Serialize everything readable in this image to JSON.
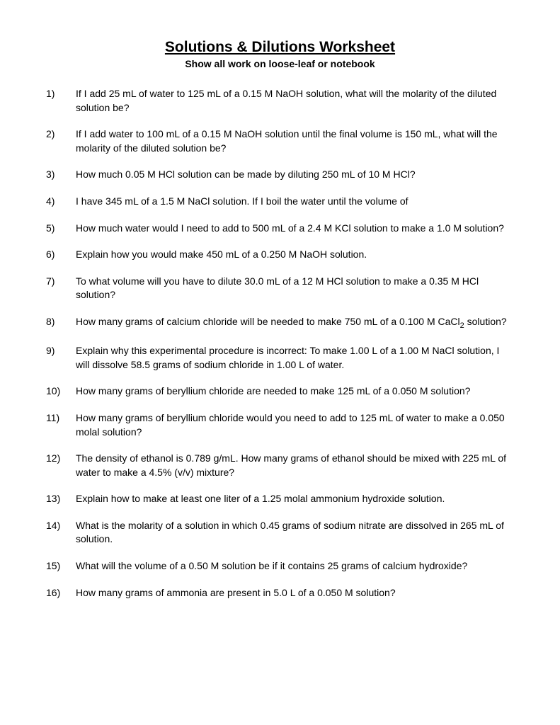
{
  "title": "Solutions & Dilutions Worksheet",
  "subtitle": "Show all work on loose-leaf or notebook",
  "questions": [
    {
      "num": "1)",
      "text": "If I add 25 mL of water to 125 mL of a 0.15 M NaOH solution, what will the molarity of the diluted solution be?"
    },
    {
      "num": "2)",
      "text": "If I add water to 100 mL of a 0.15 M NaOH solution until the final volume is 150 mL, what will the molarity of the diluted solution be?"
    },
    {
      "num": "3)",
      "text": "How much 0.05 M HCl solution can be made by diluting 250 mL of 10 M HCl?"
    },
    {
      "num": "4)",
      "text": "I have 345 mL of a 1.5 M NaCl solution.  If I boil the water until the volume of"
    },
    {
      "num": "5)",
      "text": "How much water would I need to add to 500 mL of a 2.4 M KCl solution to make a 1.0 M solution?"
    },
    {
      "num": "6)",
      "text": "Explain how you would make 450 mL of a 0.250 M NaOH solution."
    },
    {
      "num": "7)",
      "text": "To what volume will you have to dilute 30.0 mL of a 12 M HCl solution to make a 0.35 M HCl solution?"
    },
    {
      "num": "8)",
      "text": "How many grams of calcium chloride will be needed to make 750 mL of a 0.100 M CaCl",
      "sub": "2",
      "text2": " solution?"
    },
    {
      "num": "9)",
      "text": "Explain why this experimental procedure is incorrect:  To make 1.00 L of a 1.00 M NaCl solution, I will dissolve 58.5 grams of sodium chloride in 1.00 L of water."
    },
    {
      "num": "10)",
      "text": "How many grams of beryllium chloride are needed to make 125 mL of a 0.050 M solution?"
    },
    {
      "num": "11)",
      "text": "How many grams of beryllium chloride would you need to add to 125 mL of water to make a 0.050 molal solution?"
    },
    {
      "num": "12)",
      "text": "The density of ethanol is 0.789 g/mL.  How many grams of ethanol should be mixed with 225 mL of water to make a 4.5% (v/v) mixture?"
    },
    {
      "num": "13)",
      "text": "Explain how to make at least one liter of a 1.25 molal ammonium hydroxide solution."
    },
    {
      "num": "14)",
      "text": "What is the molarity of a solution in which 0.45 grams of sodium nitrate are dissolved in 265 mL of solution."
    },
    {
      "num": "15)",
      "text": "What will the volume of a 0.50 M solution be if it contains 25 grams of calcium hydroxide?"
    },
    {
      "num": "16)",
      "text": "How many grams of ammonia are present in 5.0 L of a 0.050 M solution?"
    }
  ]
}
